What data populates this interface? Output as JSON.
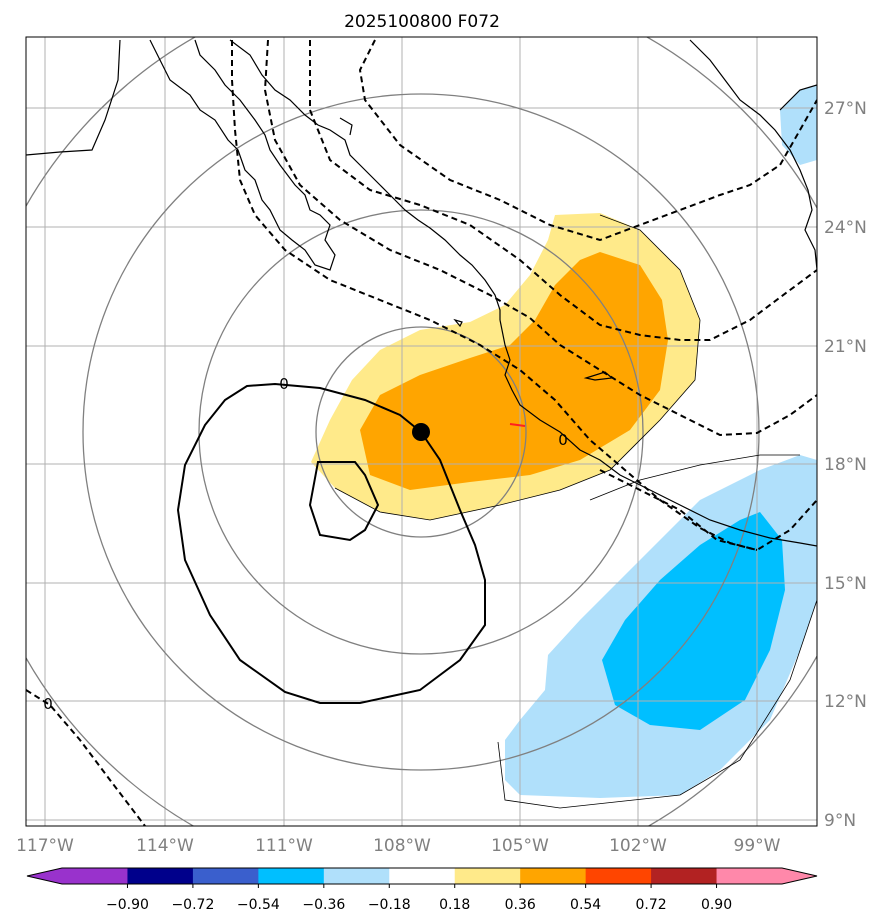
{
  "title": "2025100800 F072",
  "map": {
    "lon_ticks": [
      "117°W",
      "114°W",
      "111°W",
      "108°W",
      "105°W",
      "102°W",
      "99°W"
    ],
    "lat_ticks": [
      "27°N",
      "24°N",
      "21°N",
      "18°N",
      "15°N",
      "12°N",
      "9°N"
    ],
    "contour_labels": [
      "0",
      "0",
      "0"
    ],
    "colors": {
      "light_yellow": "#ffea8a",
      "orange": "#ffa500",
      "light_blue": "#b0e0fb",
      "blue": "#00bfff",
      "grid": "#b0b0b0",
      "range_rings": "#808080"
    }
  },
  "colorbar": {
    "ticks": [
      "−0.90",
      "−0.72",
      "−0.54",
      "−0.36",
      "−0.18",
      "0.18",
      "0.36",
      "0.54",
      "0.72",
      "0.90"
    ],
    "colors": [
      "#9932cc",
      "#00008b",
      "#3a5fcd",
      "#00bfff",
      "#b0e0fb",
      "#ffffff",
      "#ffea8a",
      "#ffa500",
      "#ff4500",
      "#b22222",
      "#ff88aa",
      "#ff88aa"
    ]
  }
}
